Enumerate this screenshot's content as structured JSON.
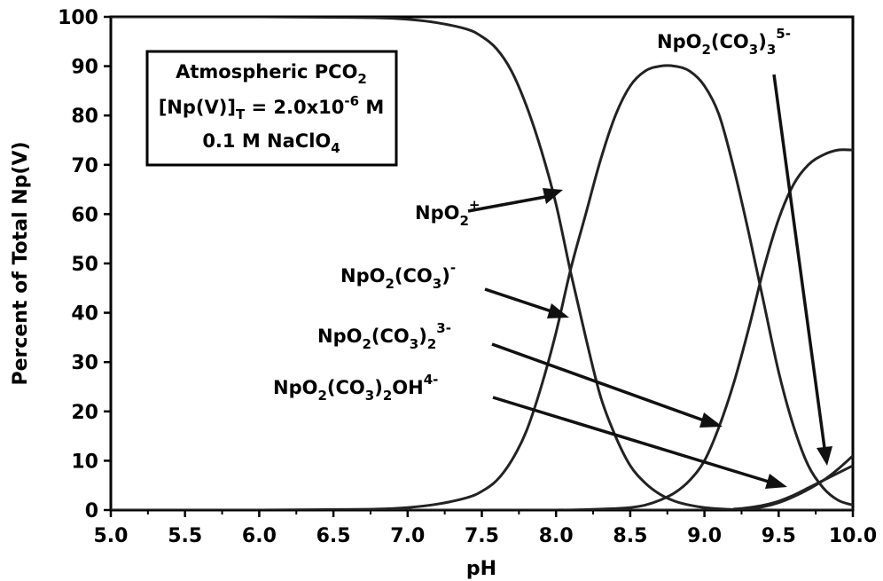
{
  "chart_data": {
    "type": "line",
    "xlabel": "pH",
    "ylabel": "Percent of Total Np(V)",
    "xlim": [
      5.0,
      10.0
    ],
    "ylim": [
      0,
      100
    ],
    "x_ticks": [
      "5.0",
      "5.5",
      "6.0",
      "6.5",
      "7.0",
      "7.5",
      "8.0",
      "8.5",
      "9.0",
      "9.5",
      "10.0"
    ],
    "y_ticks": [
      "0",
      "10",
      "20",
      "30",
      "40",
      "50",
      "60",
      "70",
      "80",
      "90",
      "100"
    ],
    "grid": false,
    "legend_box": {
      "line1": "Atmospheric PCO",
      "line1_sub": "2",
      "line2_a": "[Np(V)]",
      "line2_sub": "T",
      "line2_b": " = 2.0x10",
      "line2_sup": "-6",
      "line2_c": " M",
      "line3_a": "0.1 M NaClO",
      "line3_sub": "4"
    },
    "annotations": [
      {
        "id": "npo2",
        "parts": [
          "NpO",
          "2",
          "+"
        ]
      },
      {
        "id": "npo2co3",
        "parts": [
          "NpO",
          "2",
          "(CO",
          "3",
          ")",
          "-"
        ]
      },
      {
        "id": "npo2co32",
        "parts": [
          "NpO",
          "2",
          "(CO",
          "3",
          ")",
          "2",
          "3-"
        ]
      },
      {
        "id": "npo2co32oh",
        "parts": [
          "NpO",
          "2",
          "(CO",
          "3",
          ")",
          "2",
          "OH",
          "4-"
        ]
      },
      {
        "id": "npo2co33",
        "parts": [
          "NpO",
          "2",
          "(CO",
          "3",
          ")",
          "3",
          "5-"
        ]
      }
    ],
    "series": [
      {
        "x": [
          5.0,
          6.0,
          6.5,
          6.8,
          7.0,
          7.2,
          7.4,
          7.5,
          7.6,
          7.7,
          7.8,
          7.9,
          8.0,
          8.1,
          8.2,
          8.3,
          8.4,
          8.5,
          8.6,
          8.7,
          8.8,
          8.9,
          9.0,
          9.1,
          9.2,
          9.3,
          9.4,
          9.5,
          10.0
        ],
        "values": [
          100,
          100,
          99.9,
          99.8,
          99.5,
          98.8,
          97.5,
          96,
          93.5,
          89,
          82,
          73,
          62,
          48,
          35,
          23,
          15,
          9,
          5.5,
          3.2,
          1.8,
          1.0,
          0.5,
          0.25,
          0.1,
          0.05,
          0.02,
          0.01,
          0
        ]
      },
      {
        "x": [
          5.0,
          6.0,
          6.5,
          6.8,
          7.0,
          7.2,
          7.4,
          7.5,
          7.6,
          7.7,
          7.8,
          7.9,
          8.0,
          8.1,
          8.2,
          8.3,
          8.4,
          8.5,
          8.6,
          8.7,
          8.8,
          8.9,
          9.0,
          9.1,
          9.2,
          9.3,
          9.4,
          9.5,
          9.6,
          9.7,
          9.8,
          9.9,
          10.0
        ],
        "values": [
          0,
          0,
          0.1,
          0.2,
          0.5,
          1.2,
          2.5,
          3.8,
          6,
          10,
          16,
          25,
          36,
          49,
          60,
          71,
          80,
          86,
          89,
          90,
          90,
          89,
          86,
          80,
          69,
          56,
          42,
          28,
          17,
          9,
          4.5,
          2,
          1
        ]
      },
      {
        "x": [
          5.0,
          7.5,
          8.0,
          8.2,
          8.4,
          8.5,
          8.6,
          8.7,
          8.8,
          8.9,
          9.0,
          9.1,
          9.2,
          9.3,
          9.4,
          9.5,
          9.6,
          9.7,
          9.8,
          9.9,
          10.0
        ],
        "values": [
          0,
          0,
          0,
          0.1,
          0.3,
          0.5,
          1,
          2,
          3.5,
          6,
          10,
          17,
          26,
          37,
          49,
          59,
          66,
          70,
          72,
          73,
          73
        ]
      },
      {
        "x": [
          5.0,
          9.0,
          9.2,
          9.3,
          9.4,
          9.5,
          9.6,
          9.7,
          9.8,
          9.9,
          10.0
        ],
        "values": [
          0,
          0,
          0.2,
          0.5,
          1,
          1.8,
          3,
          4.5,
          6,
          7.5,
          9
        ]
      },
      {
        "x": [
          5.0,
          9.0,
          9.2,
          9.3,
          9.4,
          9.5,
          9.6,
          9.7,
          9.8,
          9.9,
          10.0
        ],
        "values": [
          0,
          0,
          0.1,
          0.3,
          0.7,
          1.5,
          2.7,
          4.2,
          6,
          8.3,
          11
        ]
      }
    ]
  }
}
